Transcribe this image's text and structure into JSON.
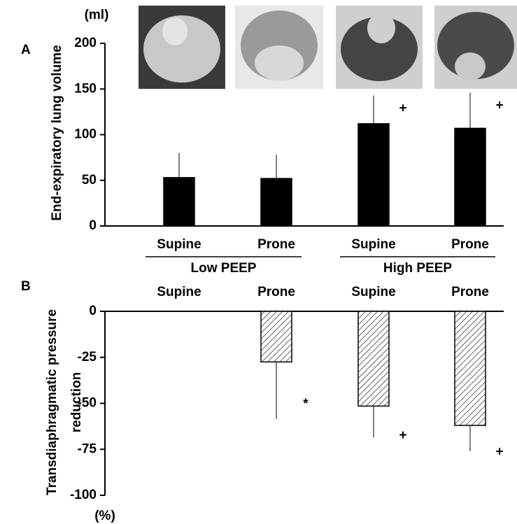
{
  "chart_data": [
    {
      "type": "bar",
      "panel": "A",
      "unit": "(ml)",
      "ylabel": [
        "End-expiratory lung volume"
      ],
      "categories": [
        "Supine",
        "Prone",
        "Supine",
        "Prone"
      ],
      "groups": [
        {
          "label": "Low PEEP",
          "span": [
            0,
            1
          ]
        },
        {
          "label": "High PEEP",
          "span": [
            2,
            3
          ]
        }
      ],
      "values": [
        53,
        52,
        112,
        107
      ],
      "errors": [
        27,
        26,
        31,
        39
      ],
      "annotations": [
        null,
        null,
        "+",
        "+"
      ],
      "color": "#000000",
      "ylim": [
        0,
        200
      ],
      "yticks": [
        0,
        50,
        100,
        150,
        200
      ]
    },
    {
      "type": "bar",
      "panel": "B",
      "unit": "(%)",
      "ylabel": [
        "Transdiaphragmatic pressure",
        "reduction"
      ],
      "categories": [
        "Supine",
        "Prone",
        "Supine",
        "Prone"
      ],
      "values": [
        null,
        -27.5,
        -51.5,
        -62
      ],
      "errors": [
        null,
        31,
        17,
        14
      ],
      "annotations": [
        null,
        "*",
        "+",
        "+"
      ],
      "color": "hatched",
      "ylim": [
        -100,
        0
      ],
      "yticks": [
        -100,
        -75,
        -50,
        -25,
        0
      ]
    }
  ]
}
